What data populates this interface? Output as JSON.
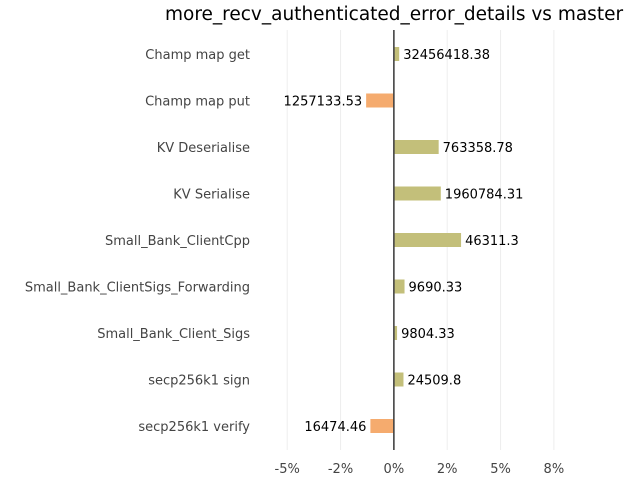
{
  "chart_data": {
    "type": "bar",
    "orientation": "horizontal",
    "title": "more_recv_authenticated_error_details vs master",
    "xlabel": "",
    "ylabel": "",
    "x_ticks": [
      -5,
      -2.5,
      0,
      2.5,
      5,
      7.5
    ],
    "x_tick_labels": [
      "-5%",
      "-2%",
      "0%",
      "2%",
      "5%",
      "8%"
    ],
    "xlim": [
      -5.9,
      10.6
    ],
    "grid": true,
    "categories": [
      "Champ map get",
      "Champ map put",
      "KV Deserialise",
      "KV Serialise",
      "Small_Bank_ClientCpp",
      "Small_Bank_ClientSigs_Forwarding",
      "Small_Bank_Client_Sigs",
      "secp256k1 sign",
      "secp256k1 verify"
    ],
    "values": [
      0.25,
      -1.3,
      2.1,
      2.2,
      3.15,
      0.5,
      0.15,
      0.45,
      -1.1
    ],
    "value_labels": [
      "32456418.38",
      "1257133.53",
      "763358.78",
      "1960784.31",
      "46311.3",
      "9690.33",
      "9804.33",
      "24509.8",
      "16474.46"
    ],
    "colors": {
      "positive": "#c3bf7a",
      "negative": "#f5ab6e"
    }
  }
}
